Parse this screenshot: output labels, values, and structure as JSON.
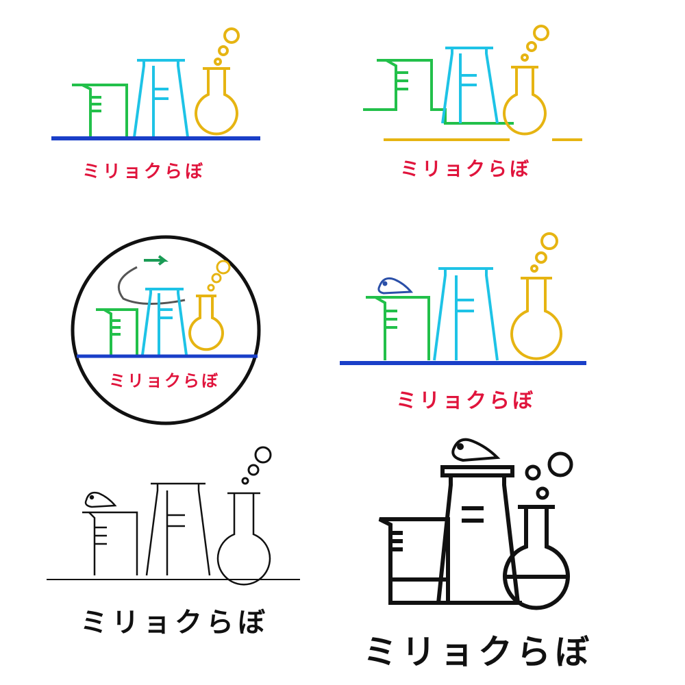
{
  "sheet": {
    "logo_text": "ミリョクらぼ",
    "variants": [
      {
        "name": "color-classic",
        "wordmark": "ミリョクらぼ",
        "wordmark_color": "#e0143c"
      },
      {
        "name": "color-linked",
        "wordmark": "ミリョクらぼ",
        "wordmark_color": "#e0143c"
      },
      {
        "name": "color-circle-badge",
        "wordmark": "ミリョクらぼ",
        "wordmark_color": "#e0143c"
      },
      {
        "name": "color-bird",
        "wordmark": "ミリョクらぼ",
        "wordmark_color": "#e0143c"
      },
      {
        "name": "mono-thin",
        "wordmark": "ミリョクらぼ",
        "wordmark_color": "#111111"
      },
      {
        "name": "mono-bold-stacked",
        "wordmark": "ミリョクらぼ",
        "wordmark_color": "#111111"
      }
    ]
  },
  "colors": {
    "beaker": "#22c04a",
    "flask_tall": "#1ec3e6",
    "round_flask": "#e6b412",
    "shelf": "#1a3fc8",
    "wordmark": "#e0143c",
    "arrow": "#1a9b55",
    "bird": "#2a4fa8",
    "mono": "#111111"
  },
  "icons": [
    "beaker-icon",
    "erlenmeyer-flask-icon",
    "round-flask-icon",
    "bubble-icon",
    "bird-icon",
    "arrow-icon",
    "shelf-line"
  ]
}
